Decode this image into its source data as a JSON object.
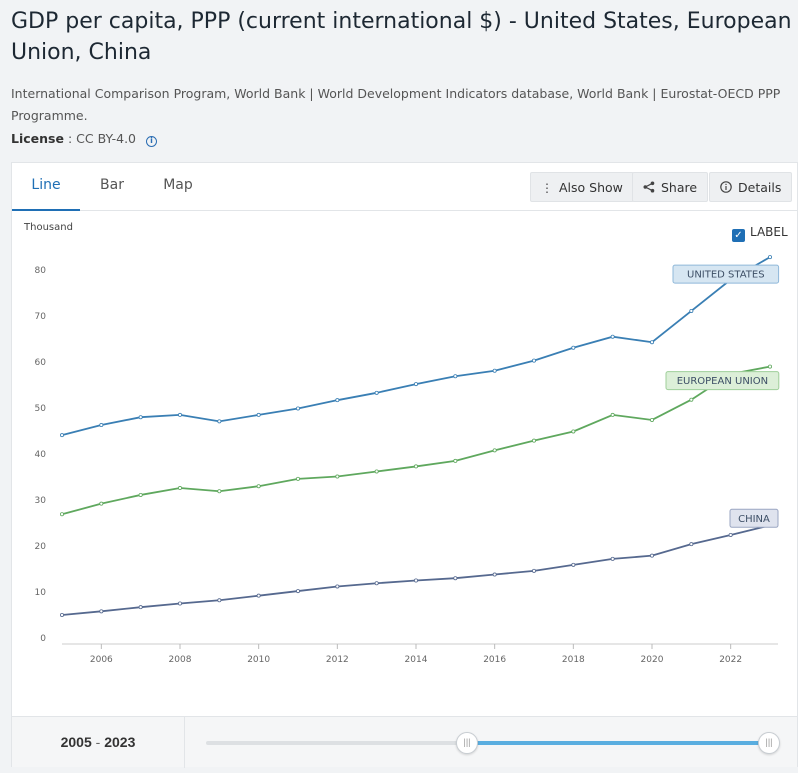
{
  "page": {
    "title": "GDP per capita, PPP (current international $) - United States, European Union, China",
    "source": "International Comparison Program, World Bank | World Development Indicators database, World Bank | Eurostat-OECD PPP Programme.",
    "license_label": "License",
    "license_value": ": CC BY-4.0",
    "info_icon": "i"
  },
  "tabs": [
    {
      "label": "Line",
      "active": true
    },
    {
      "label": "Bar",
      "active": false
    },
    {
      "label": "Map",
      "active": false
    }
  ],
  "toolbar": {
    "also_show_label": "Also Show",
    "share_label": "Share",
    "details_label": "Details",
    "also_show_icon": "vertical-dots-icon",
    "share_icon": "share-icon",
    "details_icon": "info-icon"
  },
  "label_toggle": {
    "label": "LABEL",
    "checked": true
  },
  "chart_data": {
    "type": "line",
    "ylabel": "Thousand",
    "ylim": [
      0,
      85
    ],
    "yticks": [
      0,
      10,
      20,
      30,
      40,
      50,
      60,
      70,
      80
    ],
    "xlim": [
      2005,
      2023
    ],
    "xticks": [
      2006,
      2008,
      2010,
      2012,
      2014,
      2016,
      2018,
      2020,
      2022
    ],
    "grid": false,
    "x": [
      2005,
      2006,
      2007,
      2008,
      2009,
      2010,
      2011,
      2012,
      2013,
      2014,
      2015,
      2016,
      2017,
      2018,
      2019,
      2020,
      2021,
      2022,
      2023
    ],
    "series": [
      {
        "name": "UNITED STATES",
        "color": "#3a7fb4",
        "label_bg": "#d6e6f2",
        "label_border": "#8fb8d9",
        "values": [
          44.1,
          46.3,
          48.0,
          48.5,
          47.1,
          48.5,
          49.9,
          51.7,
          53.3,
          55.2,
          56.9,
          58.1,
          60.3,
          63.1,
          65.5,
          64.3,
          71.1,
          77.9,
          82.8
        ]
      },
      {
        "name": "EUROPEAN UNION",
        "color": "#5fa85e",
        "label_bg": "#dcefd8",
        "label_border": "#9fcf9a",
        "values": [
          26.9,
          29.2,
          31.1,
          32.6,
          31.9,
          33.0,
          34.6,
          35.1,
          36.2,
          37.3,
          38.5,
          40.8,
          42.9,
          44.9,
          48.5,
          47.4,
          51.8,
          57.4,
          59.0
        ]
      },
      {
        "name": "CHINA",
        "color": "#56698f",
        "label_bg": "#dfe3ee",
        "label_border": "#9aa6c2",
        "values": [
          5.0,
          5.8,
          6.7,
          7.5,
          8.2,
          9.2,
          10.2,
          11.2,
          11.9,
          12.5,
          13.0,
          13.8,
          14.6,
          15.9,
          17.2,
          17.9,
          20.4,
          22.4,
          24.5
        ]
      }
    ]
  },
  "range": {
    "start": "2005",
    "separator": "-",
    "end": "2023",
    "start_fraction": 0.0,
    "end_fraction": 1.0
  }
}
